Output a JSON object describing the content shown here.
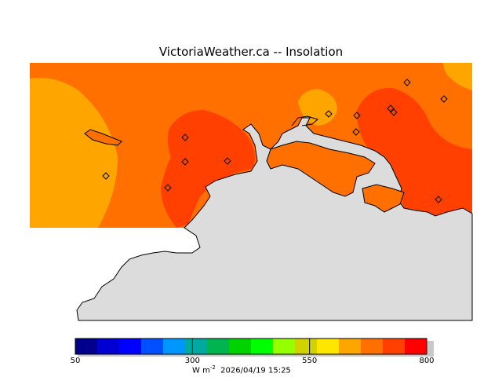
{
  "title": "VictoriaWeather.ca -- Insolation",
  "colors": {
    "land": "#dcdcdc",
    "coast": "#000000",
    "field_low": "#ffa500",
    "field_mid": "#ff7000",
    "field_high": "#ff4000"
  },
  "colorbar": {
    "colors": [
      "#00008c",
      "#0000d2",
      "#0000ff",
      "#0050ff",
      "#0096ff",
      "#00aaa0",
      "#00b450",
      "#00d200",
      "#00ff00",
      "#96ff00",
      "#d2d200",
      "#ffe600",
      "#ffa500",
      "#ff7000",
      "#ff4000",
      "#ff0000"
    ],
    "ticks": [
      {
        "value": 50,
        "label": "50"
      },
      {
        "value": 300,
        "label": "300"
      },
      {
        "value": 550,
        "label": "550"
      },
      {
        "value": 800,
        "label": "800"
      }
    ],
    "units_prefix": "W m",
    "units_exp": "-2",
    "timestamp": "2026/04/19 15:25"
  },
  "stations_count_note": "",
  "legend_icon": "diamond-station-icon"
}
